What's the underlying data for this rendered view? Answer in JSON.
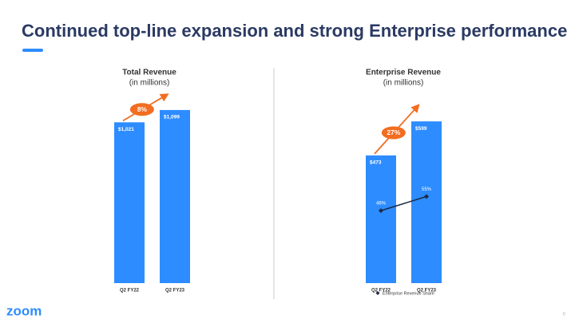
{
  "slide": {
    "title": "Continued top-line expansion and strong Enterprise performance",
    "logo": "zoom",
    "page_number": "6"
  },
  "chart_data": [
    {
      "type": "bar",
      "title": "Total Revenue",
      "subtitle": "(in millions)",
      "categories": [
        "Q2 FY22",
        "Q2 FY23"
      ],
      "values": [
        1021,
        1099
      ],
      "value_labels": [
        "$1,021",
        "$1,099"
      ],
      "color": "#2d8cff",
      "ylim": [
        0,
        1200
      ],
      "growth_label": "8%"
    },
    {
      "type": "bar",
      "title": "Enterprise Revenue",
      "subtitle": "(in millions)",
      "categories": [
        "Q2 FY22",
        "Q2 FY23"
      ],
      "values": [
        473,
        599
      ],
      "value_labels": [
        "$473",
        "$599"
      ],
      "color": "#2d8cff",
      "ylim": [
        0,
        700
      ],
      "growth_label": "27%",
      "y2lim": [
        0,
        120
      ],
      "line": {
        "name": "Enterprise Revenue Share",
        "axis": "y2",
        "values": [
          46,
          55
        ],
        "value_labels": [
          "46%",
          "55%"
        ],
        "color": "#1c2b45"
      }
    }
  ]
}
